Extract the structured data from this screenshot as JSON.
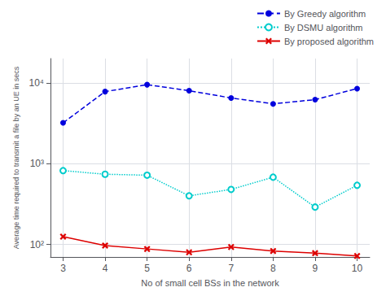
{
  "chart_data": {
    "type": "line",
    "xlabel": "No of small cell BSs in the network",
    "ylabel": "Average time required to transmit a file by an UE in secs",
    "x": [
      3,
      4,
      5,
      6,
      7,
      8,
      9,
      10
    ],
    "series": [
      {
        "name": "By Greedy algorithm",
        "color": "#0000dd",
        "marker": "circle",
        "line_style": "dashed",
        "values": [
          3200,
          7800,
          9500,
          8000,
          6500,
          5500,
          6200,
          8500
        ]
      },
      {
        "name": "By DSMU algorithm",
        "color": "#00cccc",
        "marker": "open_circle",
        "line_style": "dotted",
        "values": [
          820,
          740,
          720,
          400,
          480,
          680,
          290,
          540
        ]
      },
      {
        "name": "By proposed algorithm",
        "color": "#dd0000",
        "marker": "x",
        "line_style": "solid",
        "values": [
          125,
          97,
          88,
          80,
          93,
          83,
          78,
          72
        ]
      }
    ],
    "xlim": [
      2.7,
      10.3
    ],
    "xticks": [
      3,
      4,
      5,
      6,
      7,
      8,
      9,
      10
    ],
    "ylim": [
      70,
      20000
    ],
    "yticks": [
      {
        "value": 100,
        "label": "10²"
      },
      {
        "value": 1000,
        "label": "10³"
      },
      {
        "value": 10000,
        "label": "10⁴"
      }
    ],
    "log": "y",
    "grid": true,
    "legend": "upper right"
  }
}
